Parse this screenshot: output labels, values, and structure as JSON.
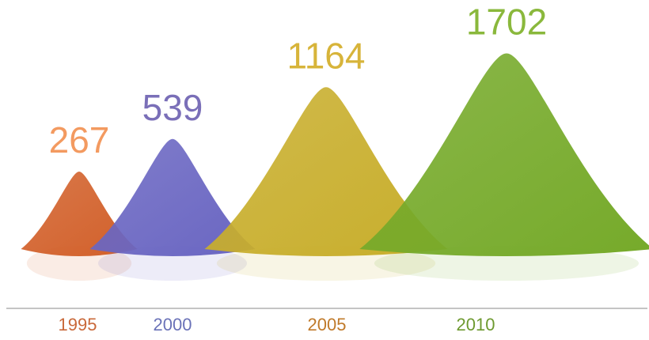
{
  "chart_data": {
    "type": "pile",
    "categories": [
      "1995",
      "2000",
      "2005",
      "2010"
    ],
    "values": [
      267,
      539,
      1164,
      1702
    ],
    "colors": [
      "#d2602a",
      "#6a66c2",
      "#c8ae2c",
      "#76aa2a"
    ],
    "label_colors": [
      "#f39a60",
      "#7a6fb8",
      "#d7b43a",
      "#8ab83c"
    ],
    "tick_label_colors": [
      "#c9693a",
      "#6a72b8",
      "#c07a2a",
      "#6e9a30"
    ]
  }
}
